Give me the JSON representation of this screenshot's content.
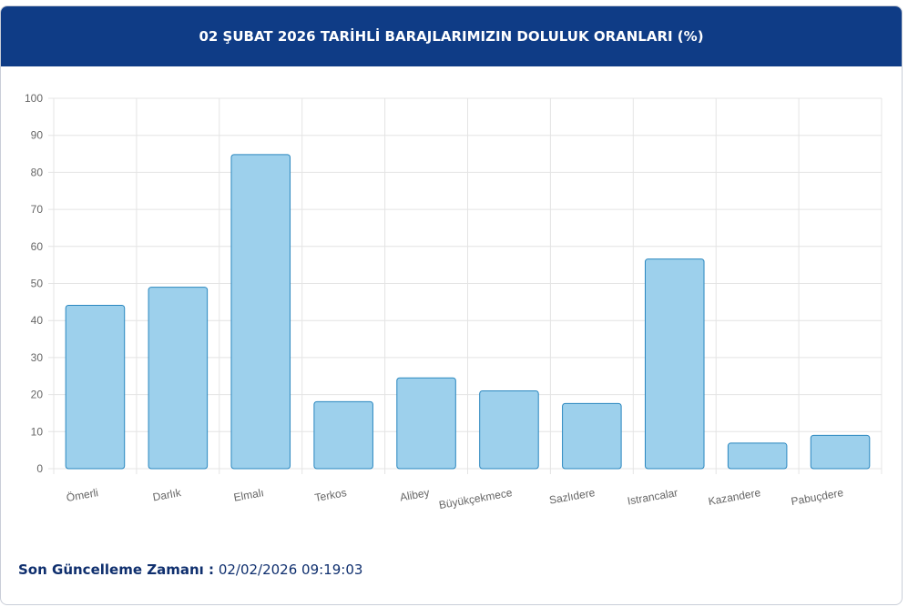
{
  "chart_data": {
    "type": "bar",
    "title": "02 ŞUBAT 2026 TARİHLİ BARAJLARIMIZIN DOLULUK ORANLARI (%)",
    "categories": [
      "Ömerli",
      "Darlık",
      "Elmalı",
      "Terkos",
      "Alibey",
      "Büyükçekmece",
      "Sazlıdere",
      "Istrancalar",
      "Kazandere",
      "Pabuçdere"
    ],
    "values": [
      44.1,
      49.0,
      84.8,
      18.1,
      24.5,
      21.0,
      17.6,
      56.6,
      6.9,
      9.0
    ],
    "color": "#9dd0ec",
    "ylim": [
      0,
      100
    ],
    "yticks": [
      0,
      10,
      20,
      30,
      40,
      50,
      60,
      70,
      80,
      90,
      100
    ],
    "grid": true
  },
  "footer": {
    "label": "Son Güncelleme Zamanı :",
    "value": "02/02/2026 09:19:03"
  }
}
